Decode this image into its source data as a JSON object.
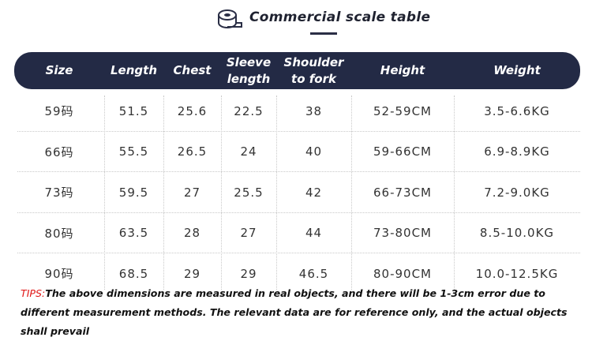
{
  "header": {
    "title": "Commercial scale table"
  },
  "table": {
    "columns": [
      "Size",
      "Length",
      "Chest",
      "Sleeve length",
      "Shoulder to fork",
      "Height",
      "Weight"
    ],
    "rows": [
      [
        "59码",
        "51.5",
        "25.6",
        "22.5",
        "38",
        "52-59CM",
        "3.5-6.6KG"
      ],
      [
        "66码",
        "55.5",
        "26.5",
        "24",
        "40",
        "59-66CM",
        "6.9-8.9KG"
      ],
      [
        "73码",
        "59.5",
        "27",
        "25.5",
        "42",
        "66-73CM",
        "7.2-9.0KG"
      ],
      [
        "80码",
        "63.5",
        "28",
        "27",
        "44",
        "73-80CM",
        "8.5-10.0KG"
      ],
      [
        "90码",
        "68.5",
        "29",
        "29",
        "46.5",
        "80-90CM",
        "10.0-12.5KG"
      ]
    ]
  },
  "tips": {
    "lead": "TIPS:",
    "text": "The above dimensions are measured in real objects, and there will be 1-3cm error due to different measurement methods. The relevant data are for reference only, and the actual objects shall prevail"
  }
}
